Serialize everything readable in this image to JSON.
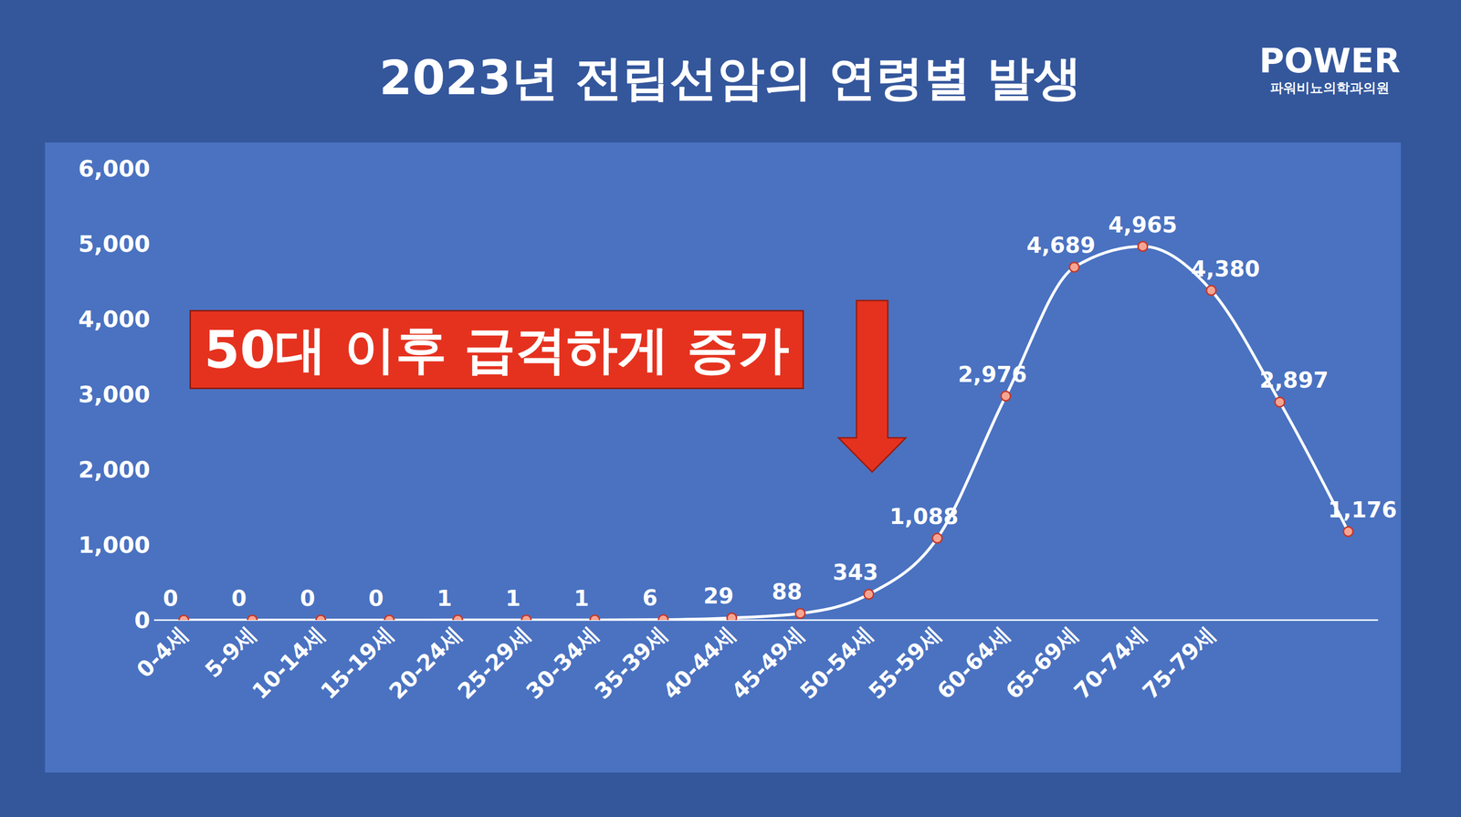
{
  "chart_data": {
    "type": "line",
    "title": "2023년 전립선암의 연령별 발생",
    "categories": [
      "0-4세",
      "5-9세",
      "10-14세",
      "15-19세",
      "20-24세",
      "25-29세",
      "30-34세",
      "35-39세",
      "40-44세",
      "45-49세",
      "50-54세",
      "55-59세",
      "60-64세",
      "65-69세",
      "70-74세",
      "75-79세",
      null,
      null
    ],
    "values": [
      0,
      0,
      0,
      0,
      1,
      1,
      1,
      6,
      29,
      88,
      343,
      1088,
      2976,
      4689,
      4965,
      4380,
      2897,
      1176
    ],
    "value_labels": [
      "0",
      "0",
      "0",
      "0",
      "1",
      "1",
      "1",
      "6",
      "29",
      "88",
      "343",
      "1,088",
      "2,976",
      "4,689",
      "4,965",
      "4,380",
      "2,897",
      "1,176"
    ],
    "color": "#ffffff",
    "marker": "circle",
    "data_labels": true,
    "grid": false,
    "ylim": [
      0,
      6000
    ],
    "yticks": [
      0,
      {
        "value": 1000,
        "label": "1,000"
      },
      {
        "value": 2000,
        "label": "2,000"
      },
      {
        "value": 3000,
        "label": "3,000"
      },
      {
        "value": 4000,
        "label": "4,000"
      },
      {
        "value": 5000,
        "label": "5,000"
      },
      {
        "value": 6000,
        "label": "6,000"
      }
    ],
    "annotation": "50대 이후 급격하게 증가"
  },
  "logo": {
    "title": "POWER",
    "subtitle": "파워비뇨의학과의원"
  }
}
